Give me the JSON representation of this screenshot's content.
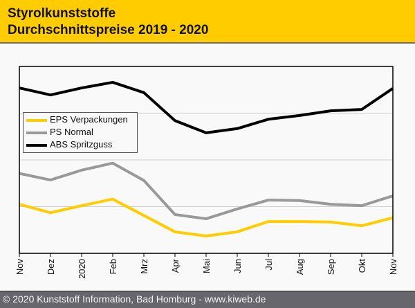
{
  "header": {
    "title_line1": "Styrolkunststoffe",
    "title_line2": "Durchschnittspreise 2019 - 2020",
    "background_color": "#ffcc00"
  },
  "footer": {
    "text": "© 2020 Kunststoff Information, Bad Homburg - www.kiweb.de",
    "background_color": "#66666c"
  },
  "chart_data": {
    "type": "line",
    "title": "Styrolkunststoffe Durchschnittspreise 2019 - 2020",
    "xlabel": "",
    "ylabel": "",
    "x": [
      "Nov",
      "Dez",
      "2020",
      "Feb",
      "Mrz",
      "Apr",
      "Mai",
      "Jun",
      "Jul",
      "Aug",
      "Sep",
      "Okt",
      "Nov"
    ],
    "ylim": [
      0,
      4
    ],
    "y_unit_note": "relative scale (no y-axis labels shown); gridlines at 1, 2, 3",
    "grid": true,
    "legend_position": "upper-left",
    "series": [
      {
        "name": "EPS Verpackungen",
        "color": "#ffcc00",
        "values": [
          1.05,
          0.87,
          1.02,
          1.16,
          0.81,
          0.46,
          0.37,
          0.46,
          0.68,
          0.68,
          0.67,
          0.59,
          0.76
        ]
      },
      {
        "name": "PS Normal",
        "color": "#999999",
        "values": [
          1.71,
          1.57,
          1.78,
          1.93,
          1.56,
          0.83,
          0.74,
          0.95,
          1.14,
          1.13,
          1.05,
          1.02,
          1.23
        ]
      },
      {
        "name": "ABS Spritzguss",
        "color": "#000000",
        "values": [
          3.54,
          3.39,
          3.54,
          3.66,
          3.44,
          2.84,
          2.58,
          2.67,
          2.87,
          2.95,
          3.05,
          3.08,
          3.53
        ]
      }
    ]
  }
}
